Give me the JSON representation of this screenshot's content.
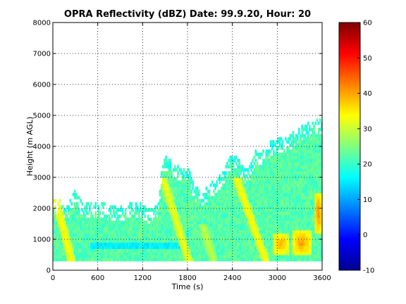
{
  "chart_data": {
    "type": "heatmap",
    "title": "OPRA Reflectivity (dBZ)  Date: 99.9.20, Hour: 20",
    "xlabel": "Time (s)",
    "ylabel": "Height (m AGL)",
    "xlim": [
      0,
      3600
    ],
    "ylim": [
      0,
      8000
    ],
    "xticks": [
      "0",
      "600",
      "1200",
      "1800",
      "2400",
      "3000",
      "3600"
    ],
    "yticks": [
      "0",
      "1000",
      "2000",
      "3000",
      "4000",
      "5000",
      "6000",
      "7000",
      "8000"
    ],
    "grid": true,
    "colorbar": {
      "range": [
        -10,
        60
      ],
      "ticks": [
        "-10",
        "0",
        "10",
        "20",
        "30",
        "40",
        "50",
        "60"
      ],
      "colormap": "jet"
    },
    "column_step_s": 20,
    "row_step_m": 100,
    "data_floor_m": 300,
    "echo_top_m": [
      [
        0,
        2300
      ],
      [
        200,
        2100
      ],
      [
        300,
        2600
      ],
      [
        400,
        2100
      ],
      [
        600,
        2200
      ],
      [
        800,
        2000
      ],
      [
        1000,
        2100
      ],
      [
        1150,
        2200
      ],
      [
        1250,
        2000
      ],
      [
        1300,
        1900
      ],
      [
        1400,
        2100
      ],
      [
        1450,
        3200
      ],
      [
        1500,
        3700
      ],
      [
        1600,
        3500
      ],
      [
        1700,
        3300
      ],
      [
        1800,
        3300
      ],
      [
        1900,
        2700
      ],
      [
        2000,
        2500
      ],
      [
        2100,
        2800
      ],
      [
        2200,
        2900
      ],
      [
        2300,
        3300
      ],
      [
        2400,
        3800
      ],
      [
        2500,
        3500
      ],
      [
        2600,
        3200
      ],
      [
        2700,
        3800
      ],
      [
        2800,
        3900
      ],
      [
        2900,
        4100
      ],
      [
        3000,
        4300
      ],
      [
        3100,
        4200
      ],
      [
        3200,
        4400
      ],
      [
        3300,
        4600
      ],
      [
        3400,
        4700
      ],
      [
        3500,
        4900
      ],
      [
        3600,
        4800
      ]
    ],
    "background_dbz": 22,
    "features": [
      {
        "kind": "band",
        "x_range": [
          500,
          1700
        ],
        "height_range": [
          700,
          900
        ],
        "dbz": 15
      },
      {
        "kind": "streak",
        "time_at_base": 250,
        "time_at_top": 40,
        "base_m": 300,
        "top_m": 2300,
        "dbz": 34
      },
      {
        "kind": "streak",
        "time_at_base": 1820,
        "time_at_top": 1470,
        "base_m": 300,
        "top_m": 3000,
        "dbz": 33
      },
      {
        "kind": "streak",
        "time_at_base": 2150,
        "time_at_top": 2000,
        "base_m": 300,
        "top_m": 1500,
        "dbz": 30
      },
      {
        "kind": "streak",
        "time_at_base": 2850,
        "time_at_top": 2450,
        "base_m": 300,
        "top_m": 3000,
        "dbz": 34
      },
      {
        "kind": "core",
        "x_range": [
          2950,
          3150
        ],
        "height_range": [
          500,
          1200
        ],
        "dbz": 40
      },
      {
        "kind": "core",
        "x_range": [
          3200,
          3450
        ],
        "height_range": [
          500,
          1300
        ],
        "dbz": 41
      },
      {
        "kind": "core",
        "x_range": [
          3500,
          3600
        ],
        "height_range": [
          1200,
          2500
        ],
        "dbz": 42
      }
    ]
  }
}
